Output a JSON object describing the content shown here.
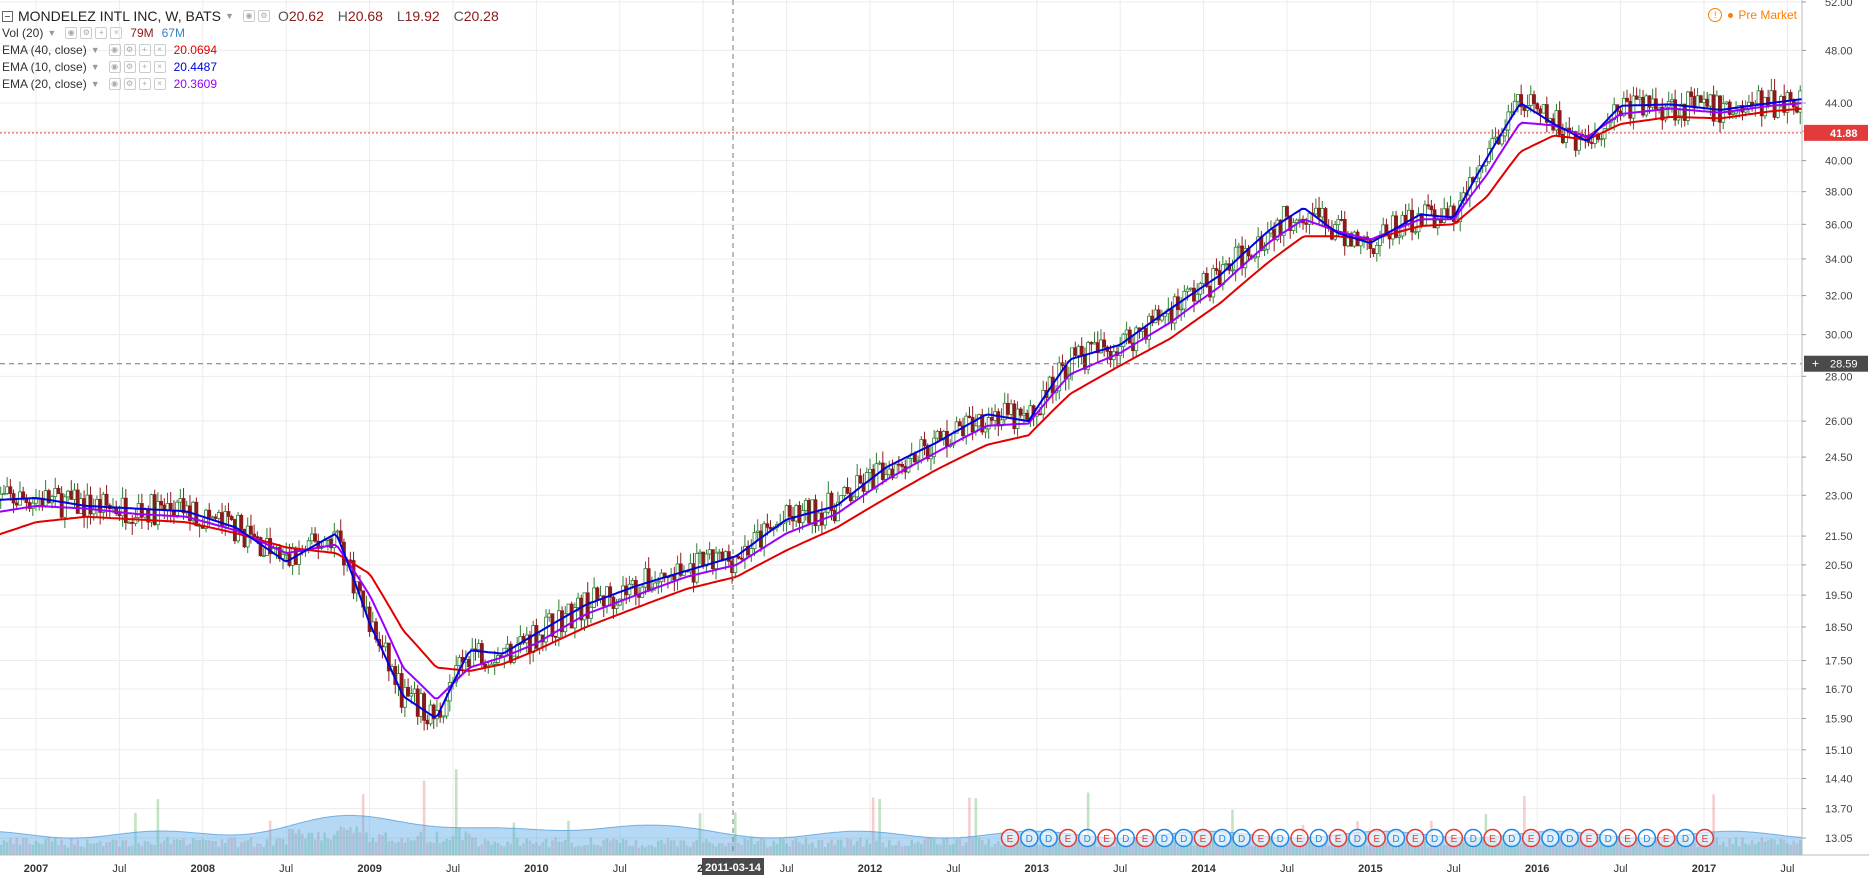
{
  "header": {
    "symbol": "MONDELEZ INTL INC, W, BATS",
    "open_label": "O",
    "open": "20.62",
    "high_label": "H",
    "high": "20.68",
    "low_label": "L",
    "low": "19.92",
    "close_label": "C",
    "close": "20.28"
  },
  "indicators": [
    {
      "label": "Vol (20)",
      "values": [
        "79M",
        "67M"
      ],
      "colors": [
        "#8b1a1a",
        "#3b82c4"
      ]
    },
    {
      "label": "EMA (40, close)",
      "values": [
        "20.0694"
      ],
      "colors": [
        "#e00000"
      ]
    },
    {
      "label": "EMA (10, close)",
      "values": [
        "20.4487"
      ],
      "colors": [
        "#0000e0"
      ]
    },
    {
      "label": "EMA (20, close)",
      "values": [
        "20.3609"
      ],
      "colors": [
        "#9900ff"
      ]
    }
  ],
  "market_status": "Pre Market",
  "crosshair": {
    "price": "28.59",
    "date": "2011-03-14"
  },
  "last_price": {
    "value": "41.88",
    "color": "#e33b3b"
  },
  "chart_data": {
    "type": "candlestick",
    "y_scale": "log",
    "y_ticks": [
      "52.00",
      "48.00",
      "44.00",
      "42.00",
      "40.00",
      "38.00",
      "36.00",
      "34.00",
      "32.00",
      "30.00",
      "28.00",
      "26.00",
      "24.50",
      "23.00",
      "21.50",
      "20.50",
      "19.50",
      "18.50",
      "17.50",
      "16.70",
      "15.90",
      "15.10",
      "14.40",
      "13.70",
      "13.05"
    ],
    "x_ticks": [
      "2007",
      "Jul",
      "2008",
      "Jul",
      "2009",
      "Jul",
      "2010",
      "Jul",
      "20",
      "Jul",
      "2012",
      "Jul",
      "2013",
      "Jul",
      "2014",
      "Jul",
      "2015",
      "Jul",
      "2016",
      "Jul",
      "2017",
      "Jul"
    ],
    "ema_approx": {
      "x": [
        2006.7,
        2007.0,
        2007.3,
        2007.6,
        2007.9,
        2008.2,
        2008.5,
        2008.8,
        2009.0,
        2009.2,
        2009.4,
        2009.6,
        2009.8,
        2010.0,
        2010.3,
        2010.6,
        2010.9,
        2011.2,
        2011.5,
        2011.8,
        2012.1,
        2012.4,
        2012.7,
        2012.95,
        2013.2,
        2013.5,
        2013.8,
        2014.1,
        2014.4,
        2014.6,
        2014.8,
        2015.0,
        2015.3,
        2015.5,
        2015.7,
        2015.9,
        2016.1,
        2016.3,
        2016.5,
        2016.8,
        2017.1,
        2017.4,
        2017.6
      ],
      "ema10": [
        22.8,
        22.9,
        22.6,
        22.5,
        22.4,
        21.8,
        20.6,
        21.6,
        18.6,
        16.5,
        15.9,
        17.8,
        17.7,
        18.3,
        19.2,
        19.8,
        20.3,
        20.8,
        22.1,
        22.6,
        24.1,
        25.1,
        26.3,
        26.0,
        28.8,
        29.5,
        31.3,
        33.1,
        35.7,
        37.0,
        35.5,
        34.9,
        36.6,
        36.4,
        40.2,
        44.0,
        42.5,
        41.3,
        43.8,
        43.9,
        43.5,
        44.0,
        44.3
      ],
      "ema20": [
        22.3,
        22.6,
        22.5,
        22.3,
        22.2,
        21.7,
        20.9,
        21.2,
        19.5,
        17.3,
        16.4,
        17.3,
        17.6,
        18.0,
        18.9,
        19.5,
        20.1,
        20.5,
        21.6,
        22.3,
        23.6,
        24.7,
        25.8,
        25.9,
        28.1,
        29.1,
        30.6,
        32.5,
        35.0,
        36.3,
        35.6,
        35.1,
        36.3,
        36.3,
        39.1,
        42.6,
        42.4,
        41.6,
        43.2,
        43.6,
        43.3,
        43.8,
        44.0
      ],
      "ema40": [
        21.4,
        22.0,
        22.2,
        22.1,
        22.0,
        21.6,
        21.1,
        20.9,
        20.2,
        18.4,
        17.3,
        17.2,
        17.4,
        17.8,
        18.5,
        19.1,
        19.7,
        20.1,
        21.0,
        21.8,
        22.9,
        24.0,
        25.0,
        25.4,
        27.2,
        28.5,
        29.8,
        31.6,
        33.9,
        35.3,
        35.3,
        35.1,
        35.9,
        36.0,
        37.7,
        40.6,
        41.7,
        41.4,
        42.5,
        43.0,
        42.9,
        43.4,
        43.6
      ]
    },
    "earnings_markers": [
      "E",
      "D",
      "D",
      "E",
      "D",
      "E",
      "D",
      "E",
      "D",
      "D",
      "E",
      "D",
      "D",
      "E",
      "D",
      "E",
      "D",
      "E",
      "D",
      "E",
      "D",
      "E",
      "D",
      "E",
      "D",
      "E",
      "D",
      "E",
      "D",
      "D",
      "E",
      "D",
      "E",
      "D",
      "E",
      "D",
      "E"
    ]
  }
}
